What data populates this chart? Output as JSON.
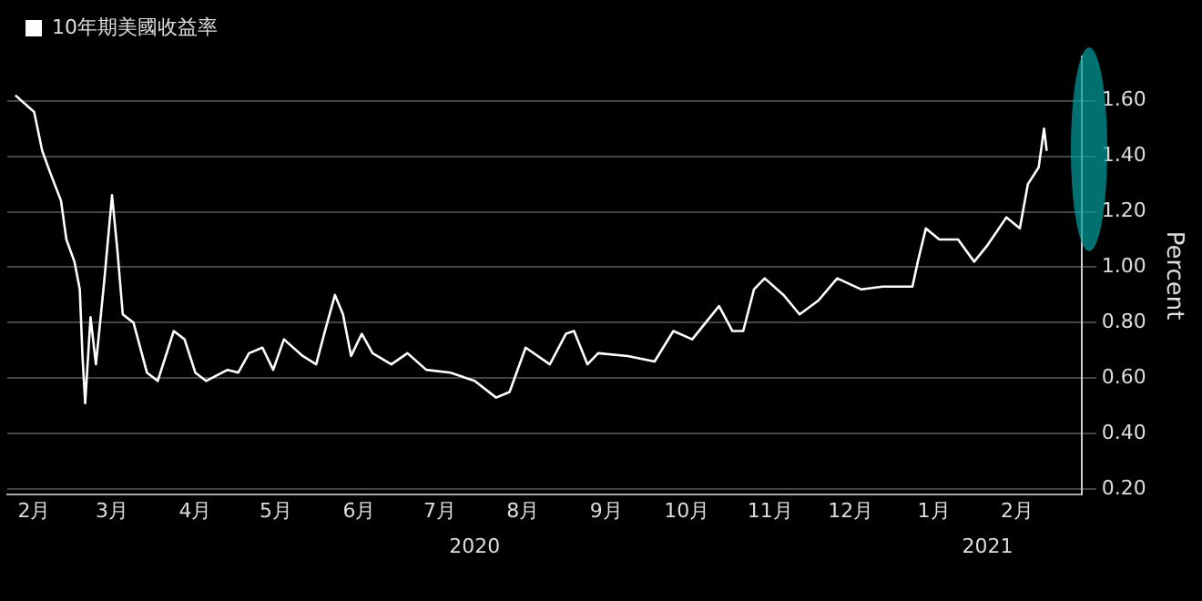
{
  "chart_data": {
    "type": "line",
    "series": [
      {
        "name": "10年期美國收益率",
        "color": "#ffffff",
        "x": [
          "2020-02-08",
          "2020-02-15",
          "2020-02-18",
          "2020-02-21",
          "2020-02-25",
          "2020-02-27",
          "2020-03-01",
          "2020-03-03",
          "2020-03-04",
          "2020-03-05",
          "2020-03-07",
          "2020-03-09",
          "2020-03-12",
          "2020-03-15",
          "2020-03-17",
          "2020-03-19",
          "2020-03-23",
          "2020-03-28",
          "2020-04-01",
          "2020-04-07",
          "2020-04-11",
          "2020-04-15",
          "2020-04-19",
          "2020-04-27",
          "2020-05-01",
          "2020-05-05",
          "2020-05-10",
          "2020-05-14",
          "2020-05-18",
          "2020-05-25",
          "2020-05-30",
          "2020-06-02",
          "2020-06-06",
          "2020-06-09",
          "2020-06-12",
          "2020-06-16",
          "2020-06-20",
          "2020-06-27",
          "2020-07-03",
          "2020-07-10",
          "2020-07-19",
          "2020-07-28",
          "2020-08-05",
          "2020-08-10",
          "2020-08-16",
          "2020-08-25",
          "2020-08-31",
          "2020-09-03",
          "2020-09-08",
          "2020-09-12",
          "2020-09-23",
          "2020-10-03",
          "2020-10-10",
          "2020-10-17",
          "2020-10-27",
          "2020-11-01",
          "2020-11-05",
          "2020-11-09",
          "2020-11-13",
          "2020-11-20",
          "2020-11-26",
          "2020-12-03",
          "2020-12-10",
          "2020-12-19",
          "2020-12-27",
          "2021-01-07",
          "2021-01-09",
          "2021-01-12",
          "2021-01-17",
          "2021-01-24",
          "2021-01-30",
          "2021-02-04",
          "2021-02-11",
          "2021-02-16",
          "2021-02-19",
          "2021-02-23",
          "2021-02-25",
          "2021-02-26"
        ],
        "values": [
          1.62,
          1.56,
          1.42,
          1.34,
          1.24,
          1.1,
          1.02,
          0.92,
          0.68,
          0.51,
          0.82,
          0.65,
          0.94,
          1.26,
          1.06,
          0.83,
          0.8,
          0.62,
          0.59,
          0.77,
          0.74,
          0.62,
          0.59,
          0.63,
          0.62,
          0.69,
          0.71,
          0.63,
          0.74,
          0.68,
          0.65,
          0.76,
          0.9,
          0.83,
          0.68,
          0.76,
          0.69,
          0.65,
          0.69,
          0.63,
          0.62,
          0.59,
          0.53,
          0.55,
          0.71,
          0.65,
          0.76,
          0.77,
          0.65,
          0.69,
          0.68,
          0.66,
          0.77,
          0.74,
          0.86,
          0.77,
          0.77,
          0.92,
          0.96,
          0.9,
          0.83,
          0.88,
          0.96,
          0.92,
          0.93,
          0.93,
          1.02,
          1.14,
          1.1,
          1.1,
          1.02,
          1.08,
          1.18,
          1.14,
          1.3,
          1.36,
          1.5,
          1.42
        ]
      }
    ],
    "ylabel": "Percent",
    "xlim": [
      "2020-02-05",
      "2021-03-11"
    ],
    "xticks": [
      {
        "value": "2020-02-15",
        "label": "2月"
      },
      {
        "value": "2020-03-15",
        "label": "3月"
      },
      {
        "value": "2020-04-15",
        "label": "4月"
      },
      {
        "value": "2020-05-15",
        "label": "5月"
      },
      {
        "value": "2020-06-15",
        "label": "6月"
      },
      {
        "value": "2020-07-15",
        "label": "7月"
      },
      {
        "value": "2020-08-15",
        "label": "8月"
      },
      {
        "value": "2020-09-15",
        "label": "9月"
      },
      {
        "value": "2020-10-15",
        "label": "10月"
      },
      {
        "value": "2020-11-15",
        "label": "11月"
      },
      {
        "value": "2020-12-15",
        "label": "12月"
      },
      {
        "value": "2021-01-15",
        "label": "1月"
      },
      {
        "value": "2021-02-15",
        "label": "2月"
      }
    ],
    "x2lim": [
      "2020-02-05",
      "2021-03-11"
    ],
    "x2ticks": [
      {
        "value": "2020-07-28",
        "label": "2020"
      },
      {
        "value": "2021-02-04",
        "label": "2021"
      }
    ],
    "ylim": [
      0.18,
      1.76
    ],
    "yticks": [
      {
        "value": 0.2,
        "label": "0.20"
      },
      {
        "value": 0.4,
        "label": "0.40"
      },
      {
        "value": 0.6,
        "label": "0.60"
      },
      {
        "value": 0.8,
        "label": "0.80"
      },
      {
        "value": 1.0,
        "label": "1.00"
      },
      {
        "value": 1.2,
        "label": "1.20"
      },
      {
        "value": 1.4,
        "label": "1.40"
      },
      {
        "value": 1.6,
        "label": "1.60"
      }
    ],
    "grid": "y",
    "legend": "top left",
    "marker": "none",
    "line_style": "solid"
  }
}
